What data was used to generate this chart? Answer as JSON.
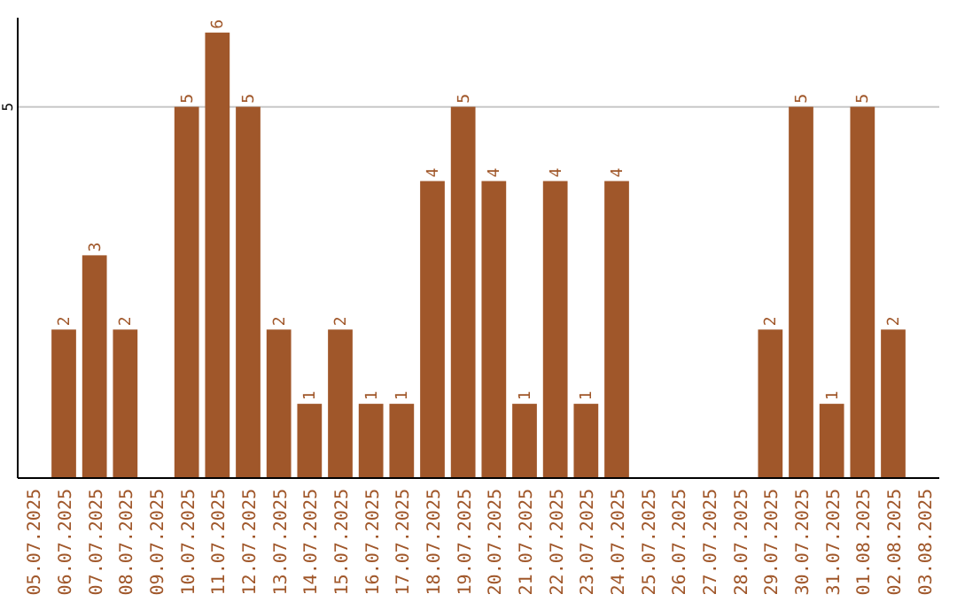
{
  "chart_data": {
    "type": "bar",
    "categories": [
      "05.07.2025",
      "06.07.2025",
      "07.07.2025",
      "08.07.2025",
      "09.07.2025",
      "10.07.2025",
      "11.07.2025",
      "12.07.2025",
      "13.07.2025",
      "14.07.2025",
      "15.07.2025",
      "16.07.2025",
      "17.07.2025",
      "18.07.2025",
      "19.07.2025",
      "20.07.2025",
      "21.07.2025",
      "22.07.2025",
      "23.07.2025",
      "24.07.2025",
      "25.07.2025",
      "26.07.2025",
      "27.07.2025",
      "28.07.2025",
      "29.07.2025",
      "30.07.2025",
      "31.07.2025",
      "01.08.2025",
      "02.08.2025",
      "03.08.2025"
    ],
    "values": [
      0,
      2,
      3,
      2,
      0,
      5,
      6,
      5,
      2,
      1,
      2,
      1,
      1,
      4,
      5,
      4,
      1,
      4,
      1,
      4,
      0,
      0,
      0,
      0,
      2,
      5,
      1,
      5,
      2,
      0
    ],
    "value_labels": [
      null,
      "2",
      "3",
      "2",
      null,
      "5",
      "6",
      "5",
      "2",
      "1",
      "2",
      "1",
      "1",
      "4",
      "5",
      "4",
      "1",
      "4",
      "1",
      "4",
      null,
      null,
      null,
      null,
      "2",
      "5",
      "1",
      "5",
      "2",
      null
    ],
    "color": "#a0572a",
    "ylim": [
      0,
      6.2
    ],
    "yticks": [
      5
    ],
    "grid": "y"
  }
}
